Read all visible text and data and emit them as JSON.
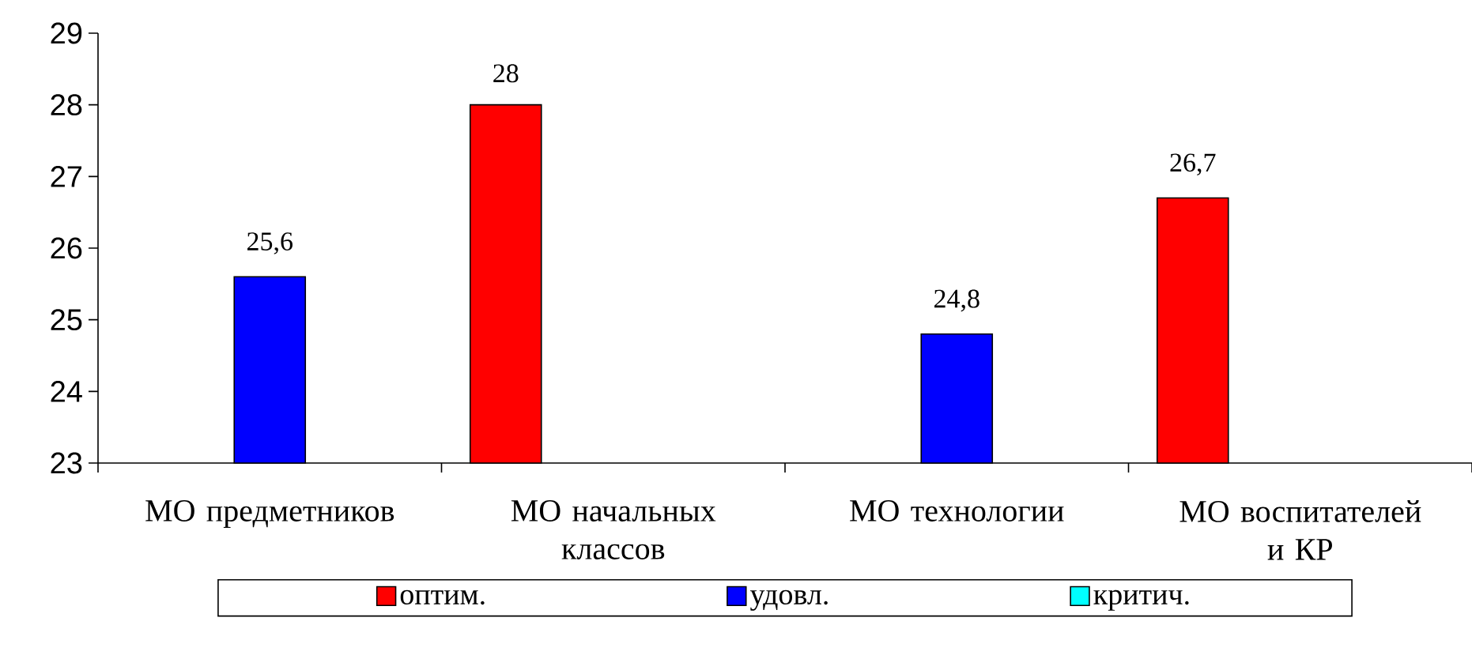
{
  "chart_data": {
    "type": "bar",
    "categories": [
      "МО предметников",
      "МО начальных классов",
      "МО технологии",
      "МО воспитателей и КР"
    ],
    "ylim": [
      23,
      29
    ],
    "yticks": [
      23,
      24,
      25,
      26,
      27,
      28,
      29
    ],
    "grid": false,
    "legend": "bottom",
    "series": [
      {
        "name": "оптим.",
        "color": "#ff0000",
        "values": [
          null,
          28,
          null,
          26.7
        ],
        "value_labels": [
          null,
          "28",
          null,
          "26,7"
        ]
      },
      {
        "name": "удовл.",
        "color": "#0000ff",
        "values": [
          25.6,
          null,
          24.8,
          null
        ],
        "value_labels": [
          "25,6",
          null,
          "24,8",
          null
        ]
      },
      {
        "name": "критич.",
        "color": "#00ffff",
        "values": [
          null,
          null,
          null,
          null
        ],
        "value_labels": [
          null,
          null,
          null,
          null
        ]
      }
    ]
  }
}
